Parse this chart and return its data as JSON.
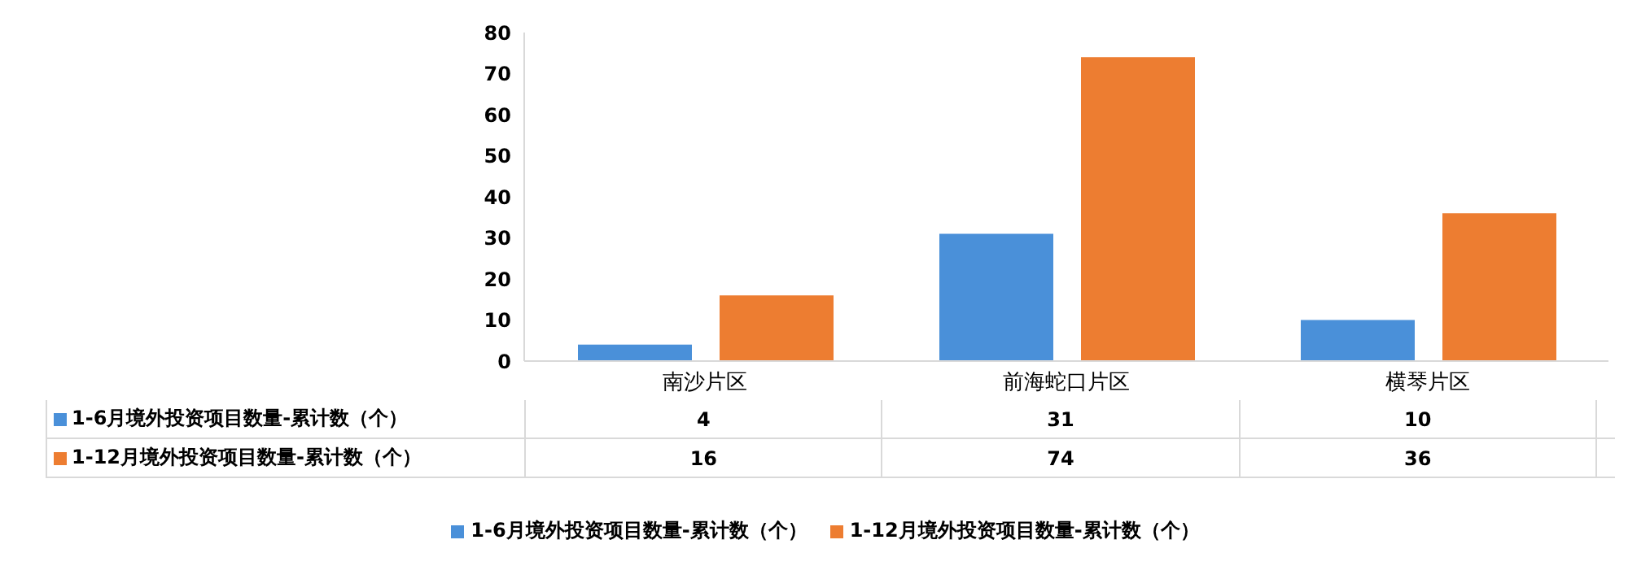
{
  "chart_data": {
    "type": "bar",
    "categories": [
      "南沙片区",
      "前海蛇口片区",
      "横琴片区"
    ],
    "series": [
      {
        "name": "1-6月境外投资项目数量-累计数（个）",
        "color": "#4a90d9",
        "values": [
          4,
          31,
          10
        ]
      },
      {
        "name": "1-12月境外投资项目数量-累计数（个）",
        "color": "#ed7d31",
        "values": [
          16,
          74,
          36
        ]
      }
    ],
    "ylim": [
      0,
      80
    ],
    "yticks": [
      0,
      10,
      20,
      30,
      40,
      50,
      60,
      70,
      80
    ],
    "legend": "bottom",
    "data_labels": true
  }
}
